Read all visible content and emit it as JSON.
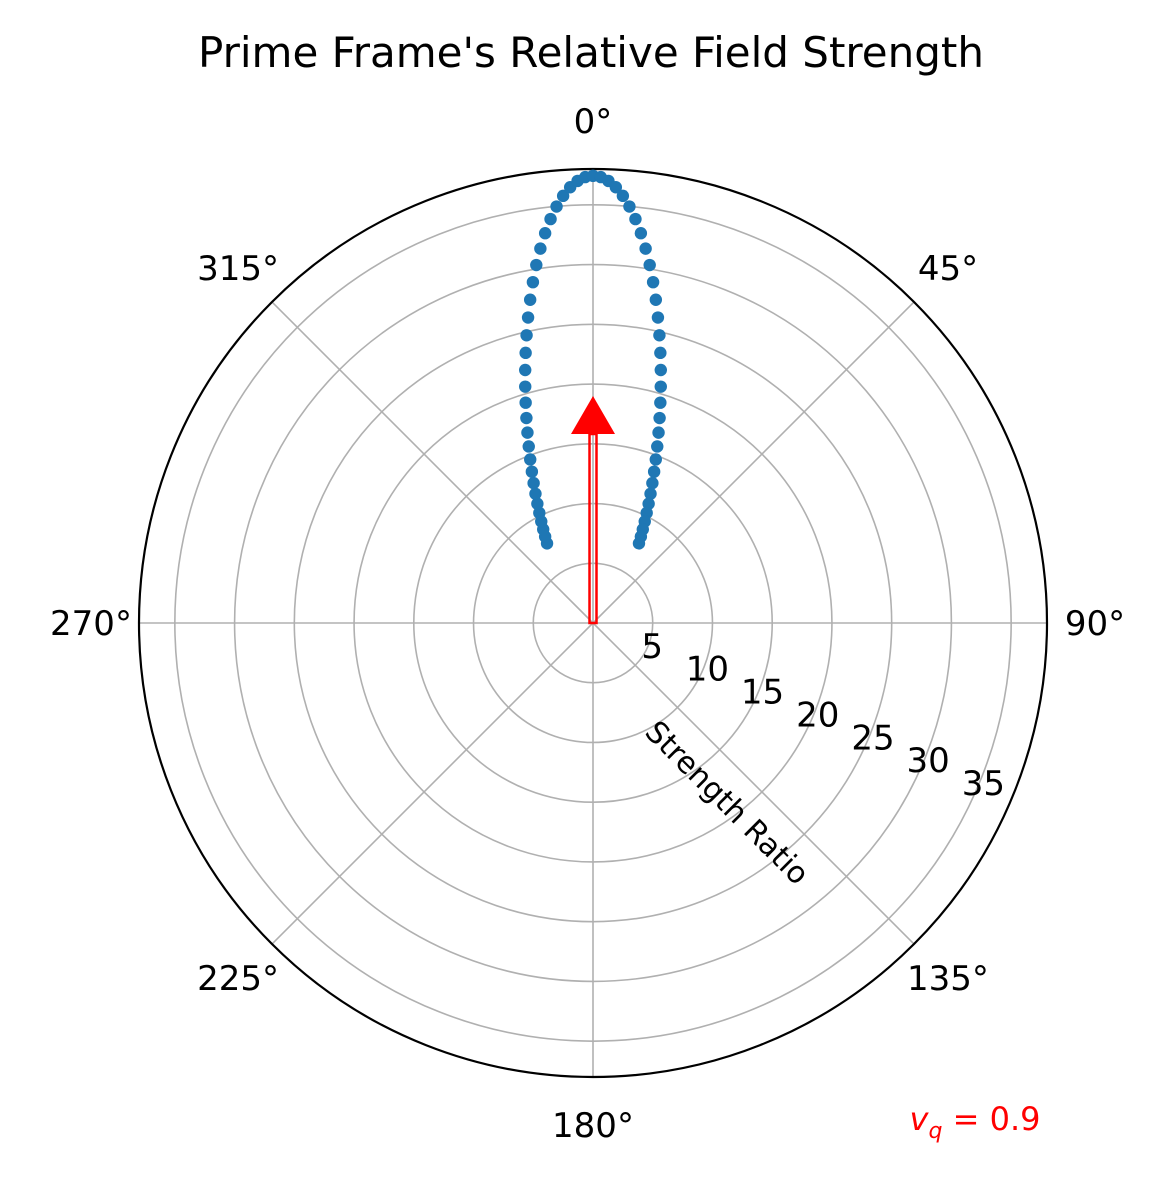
{
  "chart_data": {
    "type": "scatter",
    "projection": "polar",
    "title": "Prime Frame's Relative Field Strength",
    "theta_zero_location": "top",
    "theta_direction": "clockwise",
    "rlim": [
      0,
      38
    ],
    "rlabel": "Strength Ratio",
    "rticks": [
      5,
      10,
      15,
      20,
      25,
      30,
      35
    ],
    "rtick_labels": [
      "5",
      "10",
      "15",
      "20",
      "25",
      "30",
      "35"
    ],
    "theta_tick_labels": [
      "0°",
      "45°",
      "90°",
      "135°",
      "180°",
      "225°",
      "270°",
      "315°"
    ],
    "grid": true,
    "series": [
      {
        "color": "#1f77b4",
        "marker": "circle",
        "model": "relativistic_field_ratio",
        "velocity": 0.9,
        "angle_range_deg": [
          -30,
          30
        ],
        "angle_step_deg": 1
      }
    ],
    "arrow": {
      "theta_deg": 0,
      "length": 19,
      "color": "#ff0000"
    },
    "annotation": {
      "symbol": "v",
      "subscript": "q",
      "text": " = 0.9",
      "color": "#ff0000"
    }
  }
}
